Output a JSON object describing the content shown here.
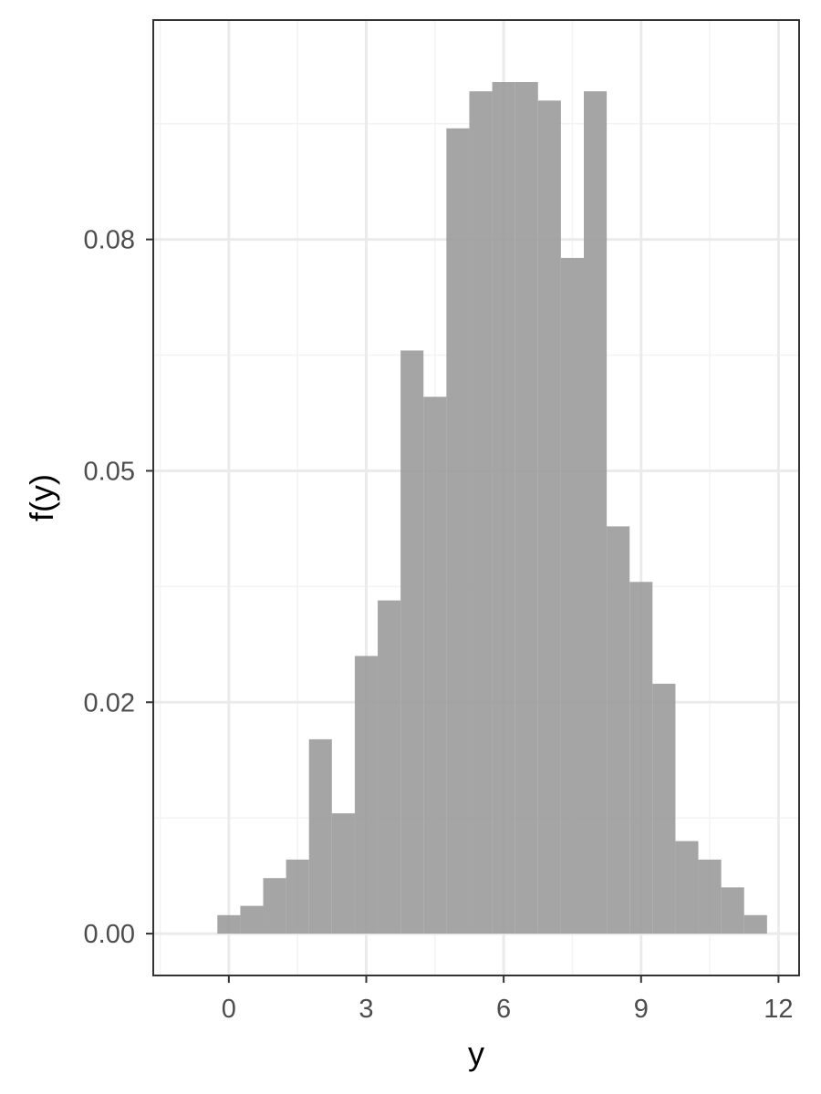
{
  "chart_data": {
    "type": "bar",
    "subtype": "histogram",
    "title": "",
    "xlabel": "y",
    "ylabel": "f(y)",
    "x_ticks": [
      0,
      3,
      6,
      9,
      12
    ],
    "x_tick_labels": [
      "0",
      "3",
      "6",
      "9",
      "12"
    ],
    "y_ticks": [
      0.0,
      0.025,
      0.05,
      0.075
    ],
    "y_tick_labels": [
      "0.00",
      "0.02",
      "0.05",
      "0.08"
    ],
    "xlim": [
      -1.65,
      12.45
    ],
    "ylim": [
      -0.00452,
      0.0987
    ],
    "grid": true,
    "bin_width": 0.5,
    "bin_left_edges": [
      -0.25,
      0.25,
      0.75,
      1.25,
      1.75,
      2.25,
      2.75,
      3.25,
      3.75,
      4.25,
      4.75,
      5.25,
      5.75,
      6.25,
      6.75,
      7.25,
      7.75,
      8.25,
      8.75,
      9.25,
      9.75,
      10.25,
      10.75,
      11.25
    ],
    "values": [
      0.002,
      0.003,
      0.006,
      0.008,
      0.021,
      0.013,
      0.03,
      0.036,
      0.063,
      0.058,
      0.087,
      0.091,
      0.092,
      0.092,
      0.09,
      0.073,
      0.091,
      0.044,
      0.038,
      0.027,
      0.01,
      0.008,
      0.005,
      0.002
    ],
    "bar_color": "#999999",
    "bar_opacity": 0.88,
    "colors": {
      "panel_border": "#333333",
      "grid_major": "#ebebeb",
      "grid_minor": "#f3f3f3",
      "tick_text": "#4d4d4d",
      "axis_title": "#000000"
    }
  }
}
